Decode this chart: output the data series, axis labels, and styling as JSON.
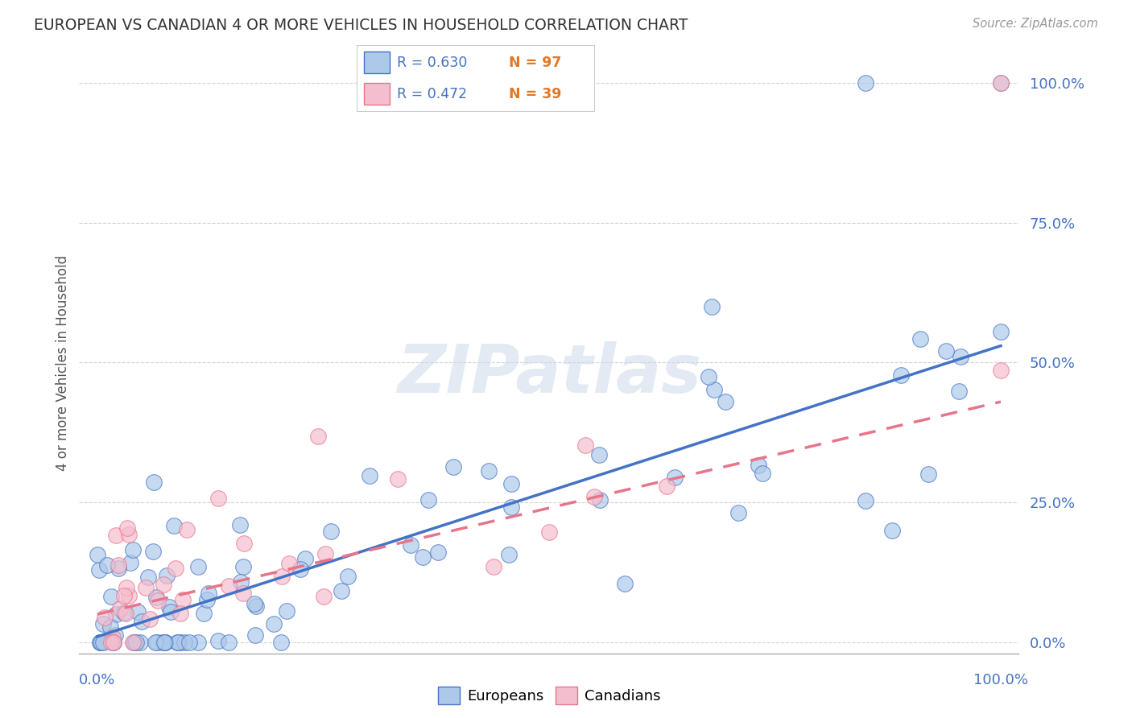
{
  "title": "EUROPEAN VS CANADIAN 4 OR MORE VEHICLES IN HOUSEHOLD CORRELATION CHART",
  "source": "Source: ZipAtlas.com",
  "ylabel": "4 or more Vehicles in Household",
  "watermark": "ZIPatlas",
  "legend_r_european": "R = 0.630",
  "legend_n_european": "N = 97",
  "legend_r_canadian": "R = 0.472",
  "legend_n_canadian": "N = 39",
  "european_color": "#adc9ea",
  "canadian_color": "#f4bece",
  "european_line_color": "#4472c4",
  "canadian_line_color": "#e8748a",
  "bg_color": "#ffffff",
  "grid_color": "#c8c8c8",
  "ytick_labels": [
    "0.0%",
    "25.0%",
    "50.0%",
    "75.0%",
    "100.0%"
  ],
  "ytick_values": [
    0,
    25,
    50,
    75,
    100
  ],
  "xlim": [
    -2,
    102
  ],
  "ylim": [
    -2,
    102
  ],
  "figsize": [
    14.06,
    8.92
  ],
  "dpi": 100,
  "title_color": "#333333",
  "tick_color": "#4472c4",
  "eu_slope": 0.52,
  "eu_intercept": 1.0,
  "ca_slope": 0.38,
  "ca_intercept": 5.0
}
